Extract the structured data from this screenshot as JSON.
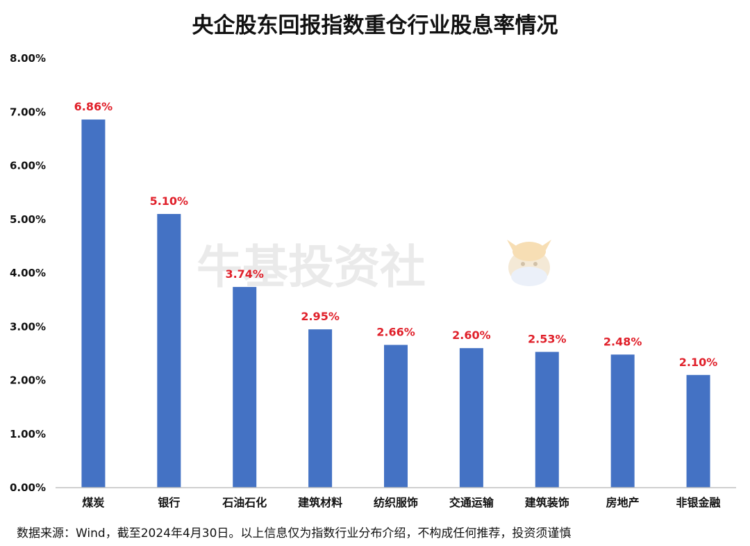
{
  "chart_data": {
    "type": "bar",
    "title": "央企股东回报指数重仓行业股息率情况",
    "categories": [
      "煤炭",
      "银行",
      "石油石化",
      "建筑材料",
      "纺织服饰",
      "交通运输",
      "建筑装饰",
      "房地产",
      "非银金融"
    ],
    "values": [
      6.86,
      5.1,
      3.74,
      2.95,
      2.66,
      2.6,
      2.53,
      2.48,
      2.1
    ],
    "data_labels": [
      "6.86%",
      "5.10%",
      "3.74%",
      "2.95%",
      "2.66%",
      "2.60%",
      "2.53%",
      "2.48%",
      "2.10%"
    ],
    "ylim": [
      0,
      8
    ],
    "yticks": [
      0,
      1,
      2,
      3,
      4,
      5,
      6,
      7,
      8
    ],
    "ytick_labels": [
      "0.00%",
      "1.00%",
      "2.00%",
      "3.00%",
      "4.00%",
      "5.00%",
      "6.00%",
      "7.00%",
      "8.00%"
    ],
    "xlabel": "",
    "ylabel": "",
    "grid": false,
    "legend": "none"
  },
  "source_note": "数据来源：Wind，截至2024年4月30日。以上信息仅为指数行业分布介绍，不构成任何推荐，投资须谨慎",
  "watermark": "牛基投资社",
  "colors": {
    "bar": "#4472c4",
    "data_label": "#e0202a",
    "axis": "#bfbfbf",
    "text": "#111111"
  }
}
